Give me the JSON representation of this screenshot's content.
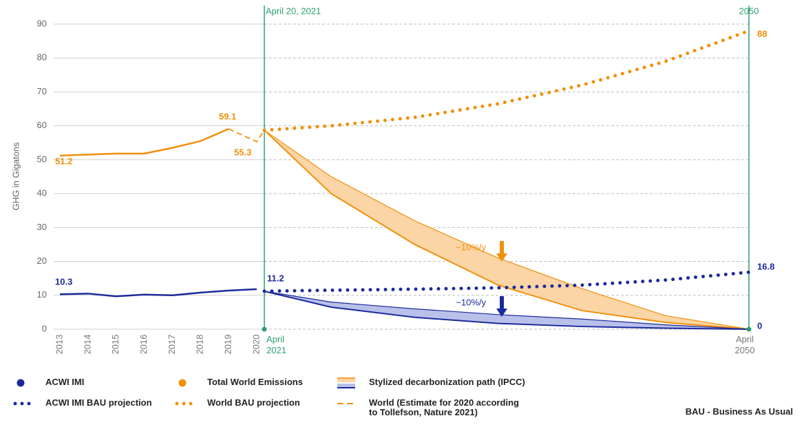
{
  "chart_data": {
    "type": "line",
    "ylabel": "GHG in Gigatons",
    "ylim": [
      0,
      90
    ],
    "yticks": [
      0,
      10,
      20,
      30,
      40,
      50,
      60,
      70,
      80,
      90
    ],
    "grid": true,
    "series": [
      {
        "name": "ACWI IMI",
        "color": "#1b2a9a",
        "style": "solid",
        "x": [
          2013,
          2014,
          2015,
          2016,
          2017,
          2018,
          2019,
          2020
        ],
        "values": [
          10.3,
          10.5,
          9.7,
          10.2,
          10.0,
          10.8,
          11.4,
          11.8
        ]
      },
      {
        "name": "ACWI IMI BAU projection",
        "color": "#1b2a9a",
        "style": "dotted",
        "x": [
          2021,
          2025,
          2030,
          2035,
          2040,
          2045,
          2050
        ],
        "values": [
          11.2,
          11.5,
          11.8,
          12.2,
          13,
          14.5,
          16.8
        ]
      },
      {
        "name": "Total World Emissions",
        "color": "#f0900a",
        "style": "solid",
        "x": [
          2013,
          2014,
          2015,
          2016,
          2017,
          2018,
          2019
        ],
        "values": [
          51.2,
          51.5,
          51.8,
          51.8,
          53.5,
          55.5,
          59.1
        ]
      },
      {
        "name": "World BAU projection",
        "color": "#f0900a",
        "style": "dotted",
        "x": [
          2021,
          2025,
          2030,
          2035,
          2040,
          2045,
          2050
        ],
        "values": [
          58.7,
          60,
          62.5,
          66.5,
          72,
          79,
          88
        ]
      },
      {
        "name": "World (Estimate for 2020 according\nto Tollefson, Nature 2021)",
        "color": "#f0900a",
        "style": "dashed",
        "x": [
          2019,
          2020,
          2021
        ],
        "values": [
          59.1,
          55.3,
          58.7
        ]
      }
    ],
    "bands": {
      "name": "Stylized decarbonization path (IPCC)",
      "series": [
        {
          "color": "#f0900a",
          "fill": "#fbd5a6",
          "x": [
            2021,
            2025,
            2030,
            2035,
            2040,
            2045,
            2050
          ],
          "upper": [
            58.7,
            45,
            32,
            21,
            12,
            4,
            0
          ],
          "lower": [
            58.7,
            40,
            25,
            13,
            5.5,
            2,
            0
          ]
        },
        {
          "color": "#1b2a9a",
          "fill": "#b9c0ea",
          "x": [
            2021,
            2025,
            2030,
            2035,
            2040,
            2045,
            2050
          ],
          "upper": [
            11.2,
            8,
            6,
            4.3,
            3,
            1.3,
            0
          ],
          "lower": [
            11.2,
            6.5,
            3.5,
            1.7,
            0.8,
            0.3,
            0
          ]
        }
      ]
    },
    "markers": [
      {
        "x": 2021,
        "label": "April 20, 2021",
        "tick_label": "April\n2021",
        "color": "#2e9e6e"
      },
      {
        "x": 2050,
        "label": "2050",
        "tick_label": "April\n2050",
        "color": "#2e9e6e"
      }
    ],
    "annotations": [
      {
        "text": "~10%/y",
        "color": "#f0900a"
      },
      {
        "text": "~10%/y",
        "color": "#1b2a9a"
      }
    ],
    "note": "BAU - Business As Usual"
  }
}
